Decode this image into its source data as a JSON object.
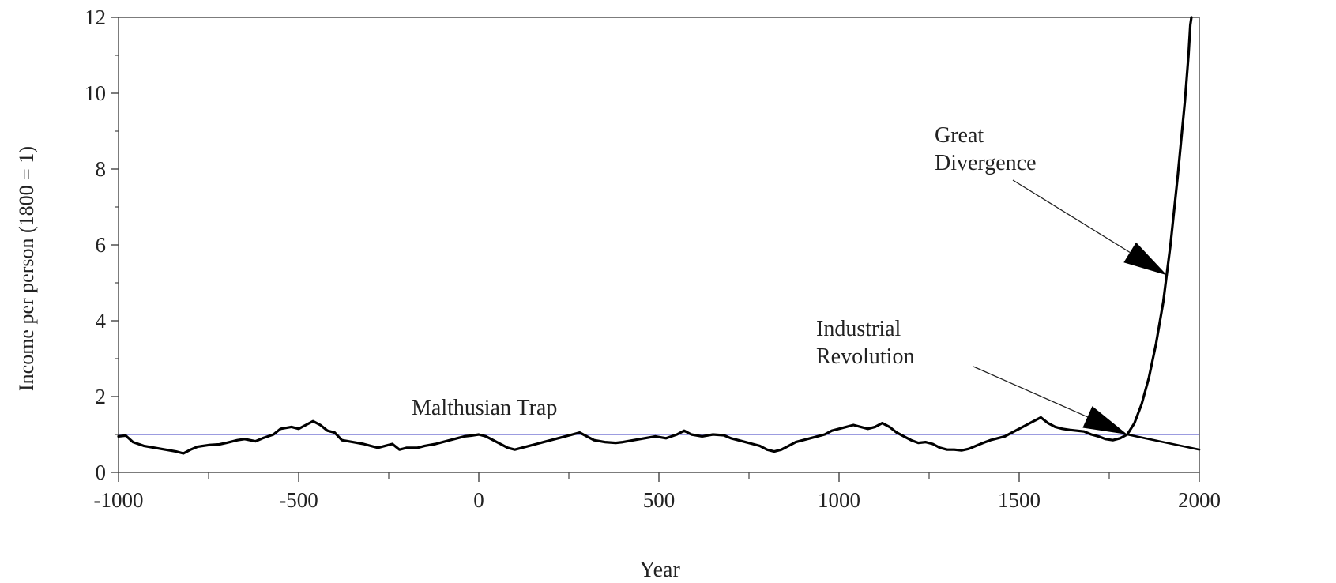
{
  "chart_data": {
    "type": "line",
    "title": "",
    "xlabel": "Year",
    "ylabel": "Income per person (1800 = 1)",
    "xlim": [
      -1000,
      2000
    ],
    "ylim": [
      0,
      12
    ],
    "x_ticks": [
      -1000,
      -500,
      0,
      500,
      1000,
      1500,
      2000
    ],
    "y_ticks": [
      0,
      2,
      4,
      6,
      8,
      10,
      12
    ],
    "grid": false,
    "legend": "none",
    "reference_line": {
      "y": 1,
      "color": "#7b7bd6"
    },
    "series": [
      {
        "color": "#000000",
        "points": [
          [
            -1000,
            0.95
          ],
          [
            -980,
            0.97
          ],
          [
            -960,
            0.8
          ],
          [
            -930,
            0.7
          ],
          [
            -900,
            0.65
          ],
          [
            -870,
            0.6
          ],
          [
            -840,
            0.55
          ],
          [
            -820,
            0.5
          ],
          [
            -800,
            0.6
          ],
          [
            -780,
            0.68
          ],
          [
            -750,
            0.72
          ],
          [
            -720,
            0.74
          ],
          [
            -700,
            0.78
          ],
          [
            -670,
            0.85
          ],
          [
            -650,
            0.88
          ],
          [
            -620,
            0.82
          ],
          [
            -600,
            0.9
          ],
          [
            -570,
            1.0
          ],
          [
            -550,
            1.15
          ],
          [
            -520,
            1.2
          ],
          [
            -500,
            1.15
          ],
          [
            -480,
            1.25
          ],
          [
            -460,
            1.35
          ],
          [
            -440,
            1.25
          ],
          [
            -420,
            1.1
          ],
          [
            -400,
            1.05
          ],
          [
            -380,
            0.85
          ],
          [
            -350,
            0.8
          ],
          [
            -320,
            0.75
          ],
          [
            -300,
            0.7
          ],
          [
            -280,
            0.65
          ],
          [
            -260,
            0.7
          ],
          [
            -240,
            0.75
          ],
          [
            -220,
            0.6
          ],
          [
            -200,
            0.65
          ],
          [
            -170,
            0.65
          ],
          [
            -150,
            0.7
          ],
          [
            -120,
            0.75
          ],
          [
            -100,
            0.8
          ],
          [
            -80,
            0.85
          ],
          [
            -60,
            0.9
          ],
          [
            -40,
            0.95
          ],
          [
            -20,
            0.97
          ],
          [
            0,
            1.0
          ],
          [
            20,
            0.95
          ],
          [
            40,
            0.85
          ],
          [
            60,
            0.75
          ],
          [
            80,
            0.65
          ],
          [
            100,
            0.6
          ],
          [
            120,
            0.65
          ],
          [
            140,
            0.7
          ],
          [
            160,
            0.75
          ],
          [
            180,
            0.8
          ],
          [
            200,
            0.85
          ],
          [
            220,
            0.9
          ],
          [
            240,
            0.95
          ],
          [
            260,
            1.0
          ],
          [
            280,
            1.05
          ],
          [
            300,
            0.95
          ],
          [
            320,
            0.85
          ],
          [
            350,
            0.8
          ],
          [
            380,
            0.78
          ],
          [
            400,
            0.8
          ],
          [
            430,
            0.85
          ],
          [
            460,
            0.9
          ],
          [
            490,
            0.95
          ],
          [
            520,
            0.9
          ],
          [
            550,
            1.0
          ],
          [
            570,
            1.1
          ],
          [
            590,
            1.0
          ],
          [
            620,
            0.95
          ],
          [
            650,
            1.0
          ],
          [
            680,
            0.98
          ],
          [
            700,
            0.9
          ],
          [
            720,
            0.85
          ],
          [
            740,
            0.8
          ],
          [
            760,
            0.75
          ],
          [
            780,
            0.7
          ],
          [
            800,
            0.6
          ],
          [
            820,
            0.55
          ],
          [
            840,
            0.6
          ],
          [
            860,
            0.7
          ],
          [
            880,
            0.8
          ],
          [
            900,
            0.85
          ],
          [
            920,
            0.9
          ],
          [
            940,
            0.95
          ],
          [
            960,
            1.0
          ],
          [
            980,
            1.1
          ],
          [
            1000,
            1.15
          ],
          [
            1020,
            1.2
          ],
          [
            1040,
            1.25
          ],
          [
            1060,
            1.2
          ],
          [
            1080,
            1.15
          ],
          [
            1100,
            1.2
          ],
          [
            1120,
            1.3
          ],
          [
            1140,
            1.2
          ],
          [
            1160,
            1.05
          ],
          [
            1180,
            0.95
          ],
          [
            1200,
            0.85
          ],
          [
            1220,
            0.78
          ],
          [
            1240,
            0.8
          ],
          [
            1260,
            0.75
          ],
          [
            1280,
            0.65
          ],
          [
            1300,
            0.6
          ],
          [
            1320,
            0.6
          ],
          [
            1340,
            0.58
          ],
          [
            1360,
            0.62
          ],
          [
            1380,
            0.7
          ],
          [
            1400,
            0.78
          ],
          [
            1420,
            0.85
          ],
          [
            1440,
            0.9
          ],
          [
            1460,
            0.95
          ],
          [
            1480,
            1.05
          ],
          [
            1500,
            1.15
          ],
          [
            1520,
            1.25
          ],
          [
            1540,
            1.35
          ],
          [
            1560,
            1.45
          ],
          [
            1580,
            1.3
          ],
          [
            1600,
            1.2
          ],
          [
            1620,
            1.15
          ],
          [
            1640,
            1.12
          ],
          [
            1660,
            1.1
          ],
          [
            1680,
            1.08
          ],
          [
            1700,
            1.0
          ],
          [
            1720,
            0.95
          ],
          [
            1740,
            0.88
          ],
          [
            1760,
            0.85
          ],
          [
            1780,
            0.9
          ],
          [
            1800,
            1.0
          ],
          [
            1820,
            1.3
          ],
          [
            1840,
            1.8
          ],
          [
            1860,
            2.5
          ],
          [
            1880,
            3.4
          ],
          [
            1900,
            4.5
          ],
          [
            1920,
            6.0
          ],
          [
            1940,
            7.8
          ],
          [
            1960,
            9.8
          ],
          [
            1970,
            11.0
          ],
          [
            1975,
            11.8
          ],
          [
            1978,
            12.0
          ]
        ]
      },
      {
        "color": "#000000",
        "points": [
          [
            1800,
            1.0
          ],
          [
            1850,
            0.9
          ],
          [
            1900,
            0.8
          ],
          [
            1950,
            0.7
          ],
          [
            2000,
            0.6
          ]
        ]
      }
    ],
    "annotations": [
      {
        "lines": [
          "Great",
          "Divergence"
        ],
        "arrow_to": [
          1910,
          5.2
        ]
      },
      {
        "lines": [
          "Industrial",
          "Revolution"
        ],
        "arrow_to": [
          1800,
          1.0
        ]
      },
      {
        "lines": [
          "Malthusian Trap"
        ]
      }
    ]
  }
}
